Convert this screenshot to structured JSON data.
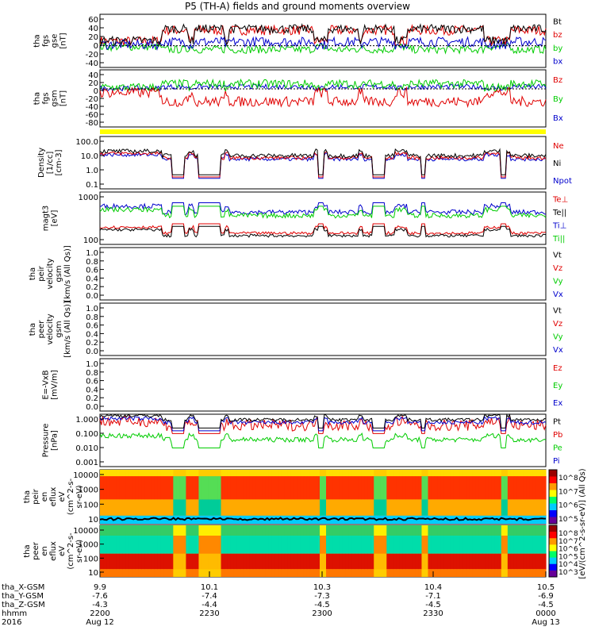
{
  "title": "P5 (TH-A) fields and ground moments overview",
  "colors": {
    "black": "#000000",
    "red": "#e00000",
    "green": "#00cc00",
    "blue": "#0000cc",
    "yellow": "#ffff00"
  },
  "chart_data": [
    {
      "type": "line",
      "id": "fgs_gse",
      "ylabel": [
        "tha",
        "fgs",
        "gse",
        "[nT]"
      ],
      "yticks": [
        "60",
        "40",
        "20",
        "0",
        "-20",
        "-40"
      ],
      "ylim": [
        -45,
        65
      ],
      "legend": [
        {
          "name": "Bt",
          "color": "black"
        },
        {
          "name": "bz",
          "color": "red"
        },
        {
          "name": "by",
          "color": "green"
        },
        {
          "name": "bx",
          "color": "blue"
        }
      ],
      "series": [
        {
          "name": "bz",
          "color": "red",
          "level": 32,
          "noise": 10
        },
        {
          "name": "by",
          "color": "green",
          "level": -8,
          "noise": 8
        },
        {
          "name": "bx",
          "color": "blue",
          "level": 8,
          "noise": 10
        },
        {
          "name": "Bt",
          "color": "black",
          "level": 35,
          "noise": 9
        }
      ]
    },
    {
      "type": "line",
      "id": "fgs_gsm",
      "ylabel": [
        "tha",
        "fgs",
        "gsm",
        "[nT]"
      ],
      "yticks": [
        "40",
        "20",
        "0",
        "-20",
        "-40",
        "-60",
        "-80"
      ],
      "ylim": [
        -90,
        45
      ],
      "legend": [
        {
          "name": "Bz",
          "color": "red"
        },
        {
          "name": "By",
          "color": "green"
        },
        {
          "name": "Bx",
          "color": "blue"
        }
      ],
      "series": [
        {
          "name": "Bx",
          "color": "blue",
          "level": 5,
          "noise": 6
        },
        {
          "name": "By",
          "color": "green",
          "level": 12,
          "noise": 10
        },
        {
          "name": "Bz",
          "color": "red",
          "level": -30,
          "noise": 12
        }
      ]
    },
    {
      "type": "line",
      "id": "density",
      "log": true,
      "ylabel": [
        "Density",
        "[1/cc]",
        "[cm-3]"
      ],
      "yticks": [
        "100.0",
        "10.0",
        "1.0",
        "0.1"
      ],
      "ylim": [
        0.1,
        100
      ],
      "legend": [
        {
          "name": "Ne",
          "color": "red"
        },
        {
          "name": "Ni",
          "color": "black"
        },
        {
          "name": "Npot",
          "color": "blue"
        }
      ],
      "series": [
        {
          "name": "Npot",
          "color": "blue",
          "level": 5,
          "noise": 0.1
        },
        {
          "name": "Ne",
          "color": "red",
          "level": 6,
          "noise": 0.1
        },
        {
          "name": "Ni",
          "color": "black",
          "level": 8,
          "noise": 0.12
        }
      ]
    },
    {
      "type": "line",
      "id": "temp",
      "log": true,
      "ylabel": [
        "magt3",
        "[eV]"
      ],
      "yticks": [
        "1000",
        "100"
      ],
      "ylim": [
        30,
        5000
      ],
      "legend": [
        {
          "name": "Te⊥",
          "color": "red"
        },
        {
          "name": "Te||",
          "color": "black"
        },
        {
          "name": "Ti⊥",
          "color": "blue"
        },
        {
          "name": "Ti||",
          "color": "green"
        }
      ],
      "series": [
        {
          "name": "Ti⊥",
          "color": "blue",
          "level": 700,
          "noise": 0.1
        },
        {
          "name": "Ti||",
          "color": "green",
          "level": 500,
          "noise": 0.1
        },
        {
          "name": "Te⊥",
          "color": "red",
          "level": 90,
          "noise": 0.06
        },
        {
          "name": "Te||",
          "color": "black",
          "level": 70,
          "noise": 0.06
        }
      ]
    },
    {
      "type": "line",
      "id": "peir_vel",
      "ylabel": [
        "tha",
        "peir",
        "velocity",
        "gsm",
        "[km/s (All Qs)]"
      ],
      "yticks": [
        "1.0",
        "0.8",
        "0.6",
        "0.4",
        "0.2",
        "0.0"
      ],
      "ylim": [
        0,
        1
      ],
      "legend": [
        {
          "name": "Vt",
          "color": "black"
        },
        {
          "name": "Vz",
          "color": "red"
        },
        {
          "name": "Vy",
          "color": "green"
        },
        {
          "name": "Vx",
          "color": "blue"
        }
      ],
      "series": []
    },
    {
      "type": "line",
      "id": "peer_vel",
      "ylabel": [
        "tha",
        "peer",
        "velocity",
        "gsm",
        "[km/s (All Qs)]"
      ],
      "yticks": [
        "1.0",
        "0.8",
        "0.6",
        "0.4",
        "0.2",
        "0.0"
      ],
      "ylim": [
        0,
        1
      ],
      "legend": [
        {
          "name": "Vt",
          "color": "black"
        },
        {
          "name": "Vz",
          "color": "red"
        },
        {
          "name": "Vy",
          "color": "green"
        },
        {
          "name": "Vx",
          "color": "blue"
        }
      ],
      "series": []
    },
    {
      "type": "line",
      "id": "efield",
      "ylabel": [
        "E=-VxB",
        "[mV/m]"
      ],
      "yticks": [
        "1.0",
        "0.8",
        "0.6",
        "0.4",
        "0.2",
        "0.0"
      ],
      "ylim": [
        0,
        1
      ],
      "legend": [
        {
          "name": "Ez",
          "color": "red"
        },
        {
          "name": "Ey",
          "color": "green"
        },
        {
          "name": "Ex",
          "color": "blue"
        }
      ],
      "series": []
    },
    {
      "type": "line",
      "id": "pressure",
      "log": true,
      "ylabel": [
        "Pressure",
        "[nPa]"
      ],
      "yticks": [
        "1.000",
        "0.100",
        "0.010",
        "0.001"
      ],
      "ylim": [
        0.001,
        2
      ],
      "legend": [
        {
          "name": "Pt",
          "color": "black"
        },
        {
          "name": "Pb",
          "color": "red"
        },
        {
          "name": "Pe",
          "color": "green"
        },
        {
          "name": "Pi",
          "color": "blue"
        }
      ],
      "series": [
        {
          "name": "Pe",
          "color": "green",
          "level": 0.05,
          "noise": 0.15
        },
        {
          "name": "Pb",
          "color": "red",
          "level": 0.4,
          "noise": 0.35
        },
        {
          "name": "Pi",
          "color": "blue",
          "level": 0.6,
          "noise": 0.12
        },
        {
          "name": "Pt",
          "color": "black",
          "level": 0.9,
          "noise": 0.1
        }
      ]
    },
    {
      "type": "heatmap",
      "id": "peir_spec",
      "ylabel": [
        "tha",
        "peir",
        "en",
        "eflux",
        "eV",
        "(cm^2-s-",
        "sr-eV)"
      ],
      "yticks": [
        "10000",
        "1000",
        "100",
        "10"
      ],
      "colorbar_ticks": [
        "10^8",
        "10^7",
        "10^6",
        "10^5"
      ]
    },
    {
      "type": "heatmap",
      "id": "peer_spec",
      "ylabel": [
        "tha",
        "peer",
        "en",
        "eflux",
        "eV",
        "(cm^2-s-",
        "sr-eV)"
      ],
      "yticks": [
        "10000",
        "1000",
        "100",
        "10"
      ],
      "colorbar_ticks": [
        "10^8",
        "10^7",
        "10^6",
        "10^5",
        "10^4",
        "10^3"
      ]
    }
  ],
  "colorbar_label": "[eV/(cm^2-s-sr-eV)] (All Qs)",
  "xaxis": {
    "rows": [
      {
        "label": "tha_X-GSM",
        "values": [
          "9.9",
          "10.1",
          "10.3",
          "10.4",
          "10.5"
        ]
      },
      {
        "label": "tha_Y-GSM",
        "values": [
          "-7.6",
          "-7.4",
          "-7.3",
          "-7.1",
          "-6.9"
        ]
      },
      {
        "label": "tha_Z-GSM",
        "values": [
          "-4.3",
          "-4.4",
          "-4.5",
          "-4.5",
          "-4.5"
        ]
      },
      {
        "label": "hhmm",
        "values": [
          "2200",
          "2230",
          "2300",
          "2330",
          "0000"
        ]
      },
      {
        "label": "2016",
        "values": [
          "Aug 12",
          "",
          "",
          "",
          "Aug 13"
        ]
      }
    ]
  }
}
